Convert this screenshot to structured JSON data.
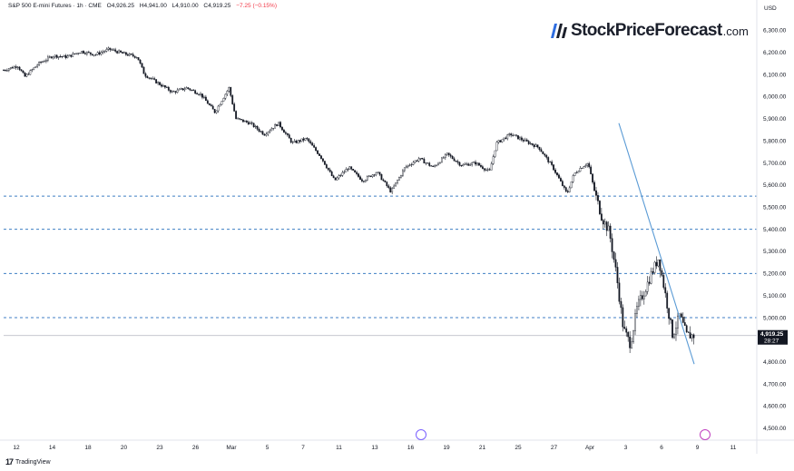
{
  "header": {
    "symbol": "S&P 500 E-mini Futures · 1h · CME",
    "open": "O4,926.25",
    "high": "H4,941.00",
    "low": "L4,910.00",
    "close": "C4,919.25",
    "change": "−7.25 (−0.15%)"
  },
  "brand": {
    "name": "StockPriceForecast",
    "suffix": ".com"
  },
  "footer": {
    "tradingview": "TradingView"
  },
  "icons": {
    "events_left": "events-icon",
    "events_right": "flash-icon"
  },
  "colors": {
    "candle": "#131722",
    "trendline": "#5b9bd5",
    "support_lines": "#3f7fc4",
    "last_price_badge": "#131722",
    "right_event": "#c040c0",
    "left_event": "#7b61ff"
  },
  "chart_data": {
    "type": "candlestick",
    "currency": "USD",
    "ylim": [
      4450,
      6380
    ],
    "price_ticks": [
      "6,300.00",
      "6,200.00",
      "6,100.00",
      "6,000.00",
      "5,900.00",
      "5,800.00",
      "5,700.00",
      "5,600.00",
      "5,500.00",
      "5,400.00",
      "5,300.00",
      "5,200.00",
      "5,100.00",
      "5,000.00",
      "4,900.00",
      "4,800.00",
      "4,700.00",
      "4,600.00",
      "4,500.00"
    ],
    "time_ticks": [
      "12",
      "14",
      "18",
      "20",
      "23",
      "26",
      "Mar",
      "5",
      "7",
      "11",
      "13",
      "16",
      "19",
      "21",
      "25",
      "27",
      "Apr",
      "3",
      "6",
      "9",
      "11"
    ],
    "last_price": "4,919.25",
    "countdown": "28:27",
    "horizontal_levels": [
      5550,
      5400,
      5200,
      5000
    ],
    "last_price_value": 4919.25,
    "trendline": {
      "from": 5880,
      "to": 4790
    },
    "price_path": [
      {
        "t": 0.0,
        "p": 6120
      },
      {
        "t": 0.02,
        "p": 6140
      },
      {
        "t": 0.03,
        "p": 6090
      },
      {
        "t": 0.05,
        "p": 6150
      },
      {
        "t": 0.07,
        "p": 6185
      },
      {
        "t": 0.09,
        "p": 6180
      },
      {
        "t": 0.11,
        "p": 6205
      },
      {
        "t": 0.13,
        "p": 6190
      },
      {
        "t": 0.15,
        "p": 6215
      },
      {
        "t": 0.17,
        "p": 6195
      },
      {
        "t": 0.19,
        "p": 6180
      },
      {
        "t": 0.2,
        "p": 6100
      },
      {
        "t": 0.22,
        "p": 6060
      },
      {
        "t": 0.24,
        "p": 6020
      },
      {
        "t": 0.26,
        "p": 6040
      },
      {
        "t": 0.28,
        "p": 6010
      },
      {
        "t": 0.3,
        "p": 5930
      },
      {
        "t": 0.32,
        "p": 6040
      },
      {
        "t": 0.33,
        "p": 5900
      },
      {
        "t": 0.35,
        "p": 5880
      },
      {
        "t": 0.37,
        "p": 5830
      },
      {
        "t": 0.39,
        "p": 5880
      },
      {
        "t": 0.41,
        "p": 5790
      },
      {
        "t": 0.43,
        "p": 5810
      },
      {
        "t": 0.45,
        "p": 5730
      },
      {
        "t": 0.47,
        "p": 5620
      },
      {
        "t": 0.49,
        "p": 5680
      },
      {
        "t": 0.51,
        "p": 5620
      },
      {
        "t": 0.53,
        "p": 5660
      },
      {
        "t": 0.55,
        "p": 5570
      },
      {
        "t": 0.57,
        "p": 5680
      },
      {
        "t": 0.59,
        "p": 5720
      },
      {
        "t": 0.61,
        "p": 5680
      },
      {
        "t": 0.63,
        "p": 5740
      },
      {
        "t": 0.65,
        "p": 5690
      },
      {
        "t": 0.67,
        "p": 5700
      },
      {
        "t": 0.69,
        "p": 5660
      },
      {
        "t": 0.7,
        "p": 5790
      },
      {
        "t": 0.72,
        "p": 5830
      },
      {
        "t": 0.74,
        "p": 5800
      },
      {
        "t": 0.76,
        "p": 5770
      },
      {
        "t": 0.78,
        "p": 5680
      },
      {
        "t": 0.8,
        "p": 5560
      },
      {
        "t": 0.81,
        "p": 5650
      },
      {
        "t": 0.82,
        "p": 5680
      },
      {
        "t": 0.83,
        "p": 5700
      },
      {
        "t": 0.84,
        "p": 5560
      },
      {
        "t": 0.85,
        "p": 5450
      },
      {
        "t": 0.86,
        "p": 5390
      },
      {
        "t": 0.87,
        "p": 5200
      },
      {
        "t": 0.88,
        "p": 4950
      },
      {
        "t": 0.89,
        "p": 4880
      },
      {
        "t": 0.9,
        "p": 5050
      },
      {
        "t": 0.91,
        "p": 5120
      },
      {
        "t": 0.92,
        "p": 5200
      },
      {
        "t": 0.93,
        "p": 5270
      },
      {
        "t": 0.94,
        "p": 5100
      },
      {
        "t": 0.95,
        "p": 4920
      },
      {
        "t": 0.96,
        "p": 5010
      },
      {
        "t": 0.97,
        "p": 4920
      },
      {
        "t": 0.98,
        "p": 4919
      }
    ]
  }
}
